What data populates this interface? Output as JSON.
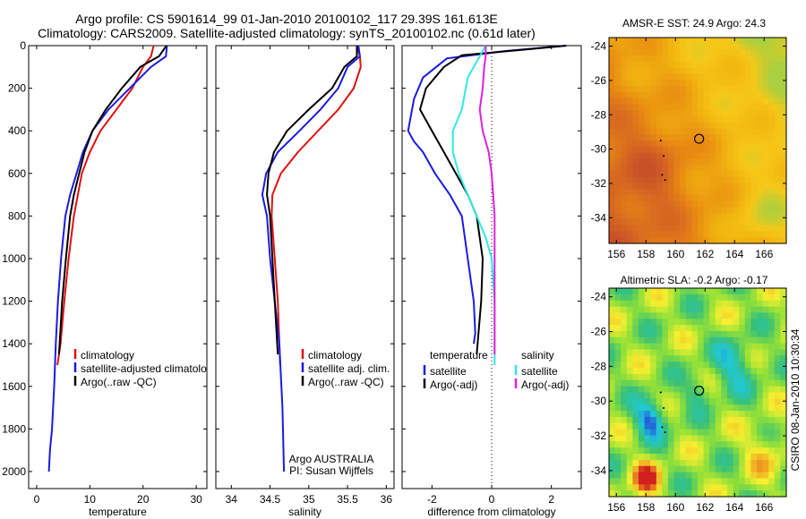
{
  "header": {
    "title_line1": "Argo profile: CS 5901614_99 01-Jan-2010 20100102_117 29.39S 161.613E",
    "title_line2": "Climatology: CARS2009. Satellite-adjusted climatology: synTS_20100102.nc (0.61d later)"
  },
  "colors": {
    "climatology": "#e01010",
    "satellite": "#1a1ae6",
    "argo": "#000000",
    "satellite_salinity": "#30e8e8",
    "argo_salinity": "#e020e0"
  },
  "chart_data": [
    {
      "type": "line",
      "name": "temperature-profile",
      "xlabel": "temperature",
      "ylabel": "",
      "xlim": [
        -1.5,
        32
      ],
      "ylim": [
        2080,
        0
      ],
      "xticks": [
        0,
        10,
        20,
        30
      ],
      "yticks": [
        0,
        200,
        400,
        600,
        800,
        1000,
        1200,
        1400,
        1600,
        1800,
        2000
      ],
      "legend": [
        "climatology",
        "satellite-adjusted climatology",
        "Argo(..raw -QC)"
      ],
      "legend_position": "lower-right",
      "series": [
        {
          "name": "climatology",
          "color": "#e01010",
          "x": [
            22,
            21.5,
            20,
            18,
            15,
            12,
            10,
            8.5,
            7,
            6,
            5.2,
            4.5,
            3.9
          ],
          "y": [
            0,
            50,
            100,
            200,
            300,
            400,
            500,
            600,
            800,
            1000,
            1200,
            1400,
            1500
          ]
        },
        {
          "name": "satellite-adjusted climatology",
          "color": "#1a1ae6",
          "x": [
            24.5,
            24.3,
            21.5,
            17.5,
            13.5,
            10.5,
            8.7,
            7.5,
            6.3,
            5.4,
            4.6,
            4,
            3.6,
            3.3,
            2.9,
            2.5,
            2.3
          ],
          "y": [
            0,
            50,
            100,
            200,
            300,
            400,
            500,
            600,
            700,
            800,
            1000,
            1200,
            1400,
            1600,
            1800,
            1900,
            2000
          ]
        },
        {
          "name": "Argo(..raw -QC)",
          "color": "#000000",
          "x": [
            24.4,
            23,
            19.5,
            16,
            13,
            10.5,
            9,
            8,
            7,
            6.3,
            5.5,
            4.8,
            4.2
          ],
          "y": [
            0,
            50,
            100,
            200,
            300,
            400,
            500,
            600,
            700,
            800,
            1000,
            1200,
            1450
          ]
        }
      ],
      "annotations": []
    },
    {
      "type": "line",
      "name": "salinity-profile",
      "xlabel": "salinity",
      "ylabel": "",
      "xlim": [
        33.8,
        36.1
      ],
      "ylim": [
        2080,
        0
      ],
      "xticks": [
        34,
        34.5,
        35,
        35.5,
        36
      ],
      "yticks": [
        0,
        200,
        400,
        600,
        800,
        1000,
        1200,
        1400,
        1600,
        1800,
        2000
      ],
      "legend": [
        "climatology",
        "satellite adj. clim.",
        "Argo(..raw -QC)"
      ],
      "legend_position": "lower-right",
      "series": [
        {
          "name": "climatology",
          "color": "#e01010",
          "x": [
            35.62,
            35.66,
            35.67,
            35.58,
            35.38,
            35.12,
            34.86,
            34.64,
            34.53,
            34.52,
            34.56,
            34.6,
            34.63
          ],
          "y": [
            0,
            50,
            100,
            200,
            300,
            400,
            500,
            600,
            700,
            800,
            1000,
            1200,
            1500
          ]
        },
        {
          "name": "satellite adj. clim.",
          "color": "#1a1ae6",
          "x": [
            35.64,
            35.66,
            35.5,
            35.38,
            35.15,
            34.88,
            34.6,
            34.45,
            34.4,
            34.46,
            34.5,
            34.56,
            34.62,
            34.66,
            34.68
          ],
          "y": [
            0,
            50,
            100,
            200,
            300,
            400,
            500,
            600,
            700,
            800,
            1000,
            1200,
            1400,
            1700,
            2000
          ]
        },
        {
          "name": "Argo(..raw -QC)",
          "color": "#000000",
          "x": [
            35.62,
            35.62,
            35.46,
            35.3,
            35.0,
            34.72,
            34.55,
            34.48,
            34.46,
            34.5,
            34.53,
            34.56,
            34.6
          ],
          "y": [
            0,
            50,
            100,
            200,
            300,
            400,
            500,
            600,
            700,
            800,
            1000,
            1200,
            1450
          ]
        }
      ],
      "annotations": [
        "Argo AUSTRALIA",
        "PI: Susan Wijffels"
      ]
    },
    {
      "type": "line",
      "name": "difference-from-climatology",
      "xlabel": "difference from climatology",
      "ylabel": "",
      "xlim": [
        -3,
        3
      ],
      "ylim": [
        2080,
        0
      ],
      "xticks": [
        -2,
        0,
        2
      ],
      "yticks": [
        0,
        200,
        400,
        600,
        800,
        1000,
        1200,
        1400,
        1600,
        1800,
        2000
      ],
      "legend_groups": [
        {
          "title": "temperature",
          "entries": [
            "satellite",
            "Argo(-adj)"
          ]
        },
        {
          "title": "salinity",
          "entries": [
            "satellite",
            "Argo(-adj)"
          ]
        }
      ],
      "legend_position": "lower-center",
      "series": [
        {
          "name": "temperature satellite",
          "color": "#1a1ae6",
          "x": [
            2.5,
            0.5,
            -1.5,
            -2.3,
            -2.6,
            -2.8,
            -2.6,
            -2.3,
            -1.9,
            -1.4,
            -1.0,
            -0.8,
            -0.6,
            -0.55,
            -0.6
          ],
          "y": [
            0,
            25,
            60,
            150,
            250,
            400,
            450,
            500,
            600,
            700,
            800,
            1000,
            1200,
            1350,
            1400
          ]
        },
        {
          "name": "temperature Argo(-adj)",
          "color": "#000000",
          "x": [
            2.5,
            1.0,
            -1.0,
            -1.6,
            -2.2,
            -2.4,
            -2.0,
            -1.6,
            -1.2,
            -0.8,
            -0.5,
            -0.3,
            -0.35,
            -0.5
          ],
          "y": [
            0,
            20,
            45,
            100,
            200,
            300,
            400,
            500,
            600,
            700,
            800,
            1000,
            1200,
            1450
          ]
        },
        {
          "name": "salinity satellite",
          "color": "#30e8e8",
          "x": [
            -0.2,
            -0.4,
            -0.8,
            -1.0,
            -1.3,
            -1.3,
            -1.1,
            -0.8,
            -0.5,
            -0.2,
            0,
            0.1,
            0.1
          ],
          "y": [
            0,
            50,
            150,
            300,
            400,
            500,
            600,
            700,
            800,
            900,
            1000,
            1200,
            1500
          ]
        },
        {
          "name": "salinity Argo(-adj)",
          "color": "#e020e0",
          "x": [
            -0.2,
            -0.2,
            -0.25,
            -0.3,
            -0.4,
            -0.3,
            -0.1,
            0.0,
            0.05,
            0.1,
            0.1,
            0.1,
            0.1
          ],
          "y": [
            0,
            50,
            100,
            200,
            300,
            400,
            500,
            600,
            700,
            800,
            1000,
            1200,
            1450
          ]
        }
      ]
    },
    {
      "type": "heatmap",
      "name": "amsr-e-sst-map",
      "title": "AMSR-E SST: 24.9  Argo: 24.3",
      "xlim": [
        155.5,
        167.5
      ],
      "ylim": [
        -35.5,
        -23.5
      ],
      "xticks": [
        156,
        158,
        160,
        162,
        164,
        166
      ],
      "yticks": [
        -24,
        -26,
        -28,
        -30,
        -32,
        -34
      ],
      "colorscale": [
        "#c85028",
        "#d86a20",
        "#e88a12",
        "#f0b010",
        "#f6c818",
        "#a8d040"
      ],
      "float_position": {
        "lon": 161.6,
        "lat": -29.4
      }
    },
    {
      "type": "heatmap",
      "name": "altimetric-sla-map",
      "title": "Altimetric SLA: -0.2  Argo: -0.17",
      "xlim": [
        155.5,
        167.5
      ],
      "ylim": [
        -35.5,
        -23.5
      ],
      "xticks": [
        156,
        158,
        160,
        162,
        164,
        166
      ],
      "yticks": [
        -24,
        -26,
        -28,
        -30,
        -32,
        -34
      ],
      "colorscale": [
        "#2233d8",
        "#20c8d8",
        "#38c078",
        "#90e038",
        "#f6f030",
        "#f0a020",
        "#d02020"
      ],
      "float_position": {
        "lon": 161.6,
        "lat": -29.4
      }
    }
  ],
  "side_label": "CSIRO 08-Jan-2010 10:30:34"
}
